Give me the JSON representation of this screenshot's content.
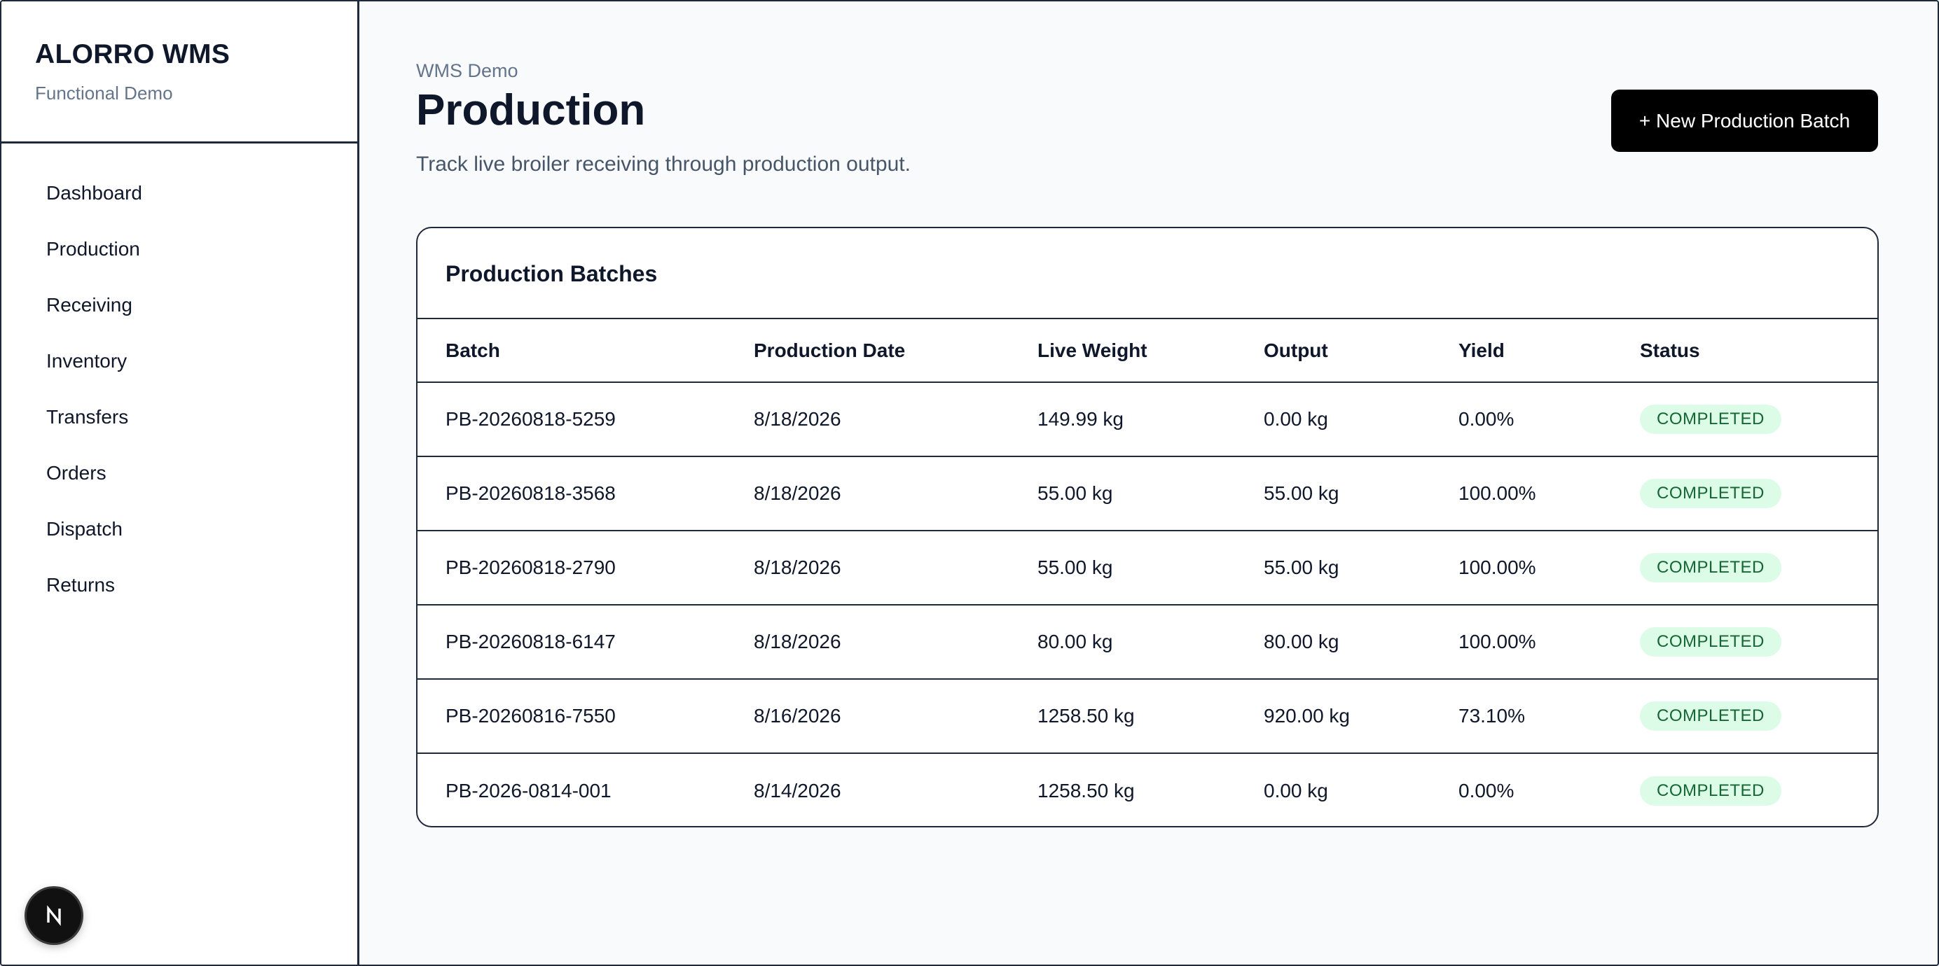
{
  "brand": {
    "name": "ALORRO WMS",
    "subtitle": "Functional Demo"
  },
  "nav": {
    "items": [
      {
        "label": "Dashboard"
      },
      {
        "label": "Production"
      },
      {
        "label": "Receiving"
      },
      {
        "label": "Inventory"
      },
      {
        "label": "Transfers"
      },
      {
        "label": "Orders"
      },
      {
        "label": "Dispatch"
      },
      {
        "label": "Returns"
      }
    ],
    "active": "Production"
  },
  "header": {
    "breadcrumb": "WMS Demo",
    "title": "Production",
    "subtitle": "Track live broiler receiving through production output.",
    "new_button_label": "+ New Production Batch"
  },
  "table": {
    "title": "Production Batches",
    "columns": [
      "Batch",
      "Production Date",
      "Live Weight",
      "Output",
      "Yield",
      "Status"
    ],
    "rows": [
      {
        "batch": "PB-20260818-5259",
        "date": "8/18/2026",
        "live_weight": "149.99 kg",
        "output": "0.00 kg",
        "yield": "0.00%",
        "status": "COMPLETED"
      },
      {
        "batch": "PB-20260818-3568",
        "date": "8/18/2026",
        "live_weight": "55.00 kg",
        "output": "55.00 kg",
        "yield": "100.00%",
        "status": "COMPLETED"
      },
      {
        "batch": "PB-20260818-2790",
        "date": "8/18/2026",
        "live_weight": "55.00 kg",
        "output": "55.00 kg",
        "yield": "100.00%",
        "status": "COMPLETED"
      },
      {
        "batch": "PB-20260818-6147",
        "date": "8/18/2026",
        "live_weight": "80.00 kg",
        "output": "80.00 kg",
        "yield": "100.00%",
        "status": "COMPLETED"
      },
      {
        "batch": "PB-20260816-7550",
        "date": "8/16/2026",
        "live_weight": "1258.50 kg",
        "output": "920.00 kg",
        "yield": "73.10%",
        "status": "COMPLETED"
      },
      {
        "batch": "PB-2026-0814-001",
        "date": "8/14/2026",
        "live_weight": "1258.50 kg",
        "output": "0.00 kg",
        "yield": "0.00%",
        "status": "COMPLETED"
      }
    ]
  },
  "colors": {
    "status_completed_bg": "#dcfce7",
    "status_completed_text": "#166534",
    "primary_button": "#000000"
  },
  "icons": {
    "framework_badge": "nextjs-logo-icon"
  }
}
